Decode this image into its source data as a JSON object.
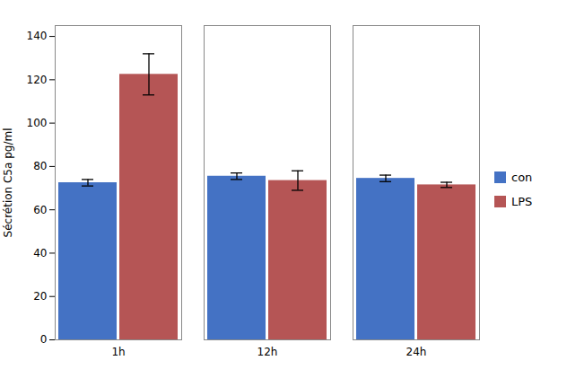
{
  "chart_data": {
    "type": "bar",
    "ylabel": "Sécrétion C5a pg/ml",
    "categories": [
      "1h",
      "12h",
      "24h"
    ],
    "series": [
      {
        "name": "con",
        "color": "#4472C4",
        "values": [
          72.5,
          75.5,
          74.5
        ],
        "errors": [
          1.5,
          1.5,
          1.5
        ]
      },
      {
        "name": "LPS",
        "color": "#B55555",
        "values": [
          122.5,
          73.5,
          71.5
        ],
        "errors": [
          9.5,
          4.5,
          1.2
        ]
      }
    ],
    "ylim": [
      0,
      145
    ],
    "yticks": [
      0,
      20,
      40,
      60,
      80,
      100,
      120,
      140
    ],
    "grid": false,
    "legend": "right"
  }
}
